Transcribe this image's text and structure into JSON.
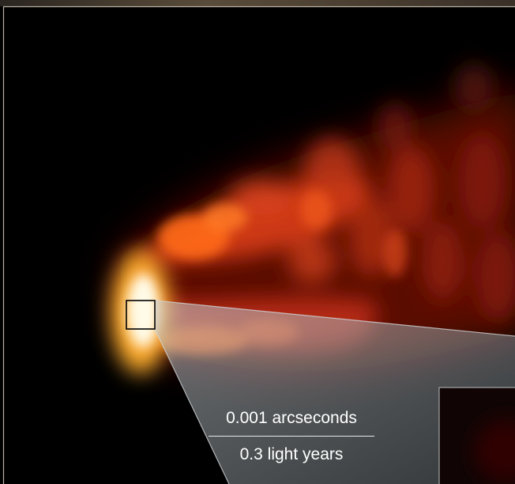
{
  "scale_bar": {
    "angular_label": "0.001 arcseconds",
    "physical_label": "0.3 light years"
  },
  "colors": {
    "background": "#000000",
    "jet_core": "#fffbe0",
    "jet_glow": "#ff6a1a",
    "jet_outer": "#7a1408",
    "zoom_cone": "#9aa3a8",
    "frame": "#b8b0a4"
  }
}
